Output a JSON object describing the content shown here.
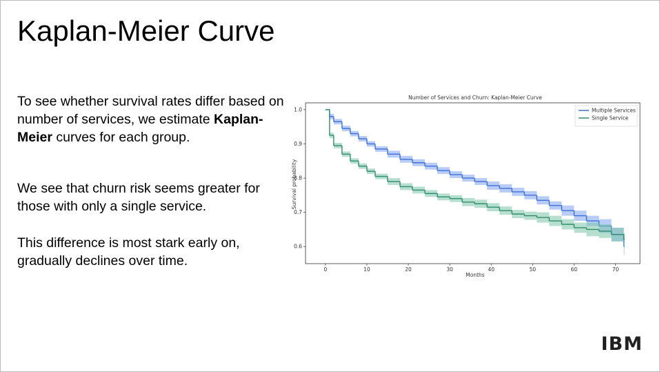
{
  "slide": {
    "title": "Kaplan-Meier Curve",
    "paragraphs": [
      [
        "To see whether survival rates differ based on number of services, we estimate ",
        "Kaplan-Meier",
        " curves for each group."
      ],
      [
        "We see that churn risk seems greater for those with only a single service."
      ],
      [
        "This difference is most stark early on, gradually declines over time."
      ]
    ],
    "logo": "IBM"
  },
  "chart_data": {
    "type": "step",
    "title": "Number of Services and Churn: Kaplan-Meier Curve",
    "x_label": "Months",
    "y_label": "Survival probability",
    "x": [
      0,
      1,
      2,
      4,
      6,
      8,
      10,
      12,
      15,
      18,
      21,
      24,
      27,
      30,
      33,
      36,
      39,
      42,
      45,
      48,
      51,
      54,
      57,
      60,
      63,
      66,
      69,
      72
    ],
    "series": [
      {
        "name": "Multiple Services",
        "color": "#3b6fd9",
        "band_color": "#7fa3ee",
        "values": [
          1.0,
          0.98,
          0.965,
          0.945,
          0.93,
          0.915,
          0.9,
          0.885,
          0.87,
          0.855,
          0.845,
          0.835,
          0.822,
          0.81,
          0.8,
          0.79,
          0.778,
          0.77,
          0.76,
          0.75,
          0.735,
          0.72,
          0.705,
          0.69,
          0.675,
          0.66,
          0.635,
          0.6
        ],
        "lower": [
          1.0,
          0.972,
          0.957,
          0.937,
          0.922,
          0.907,
          0.892,
          0.877,
          0.86,
          0.845,
          0.835,
          0.825,
          0.812,
          0.8,
          0.79,
          0.78,
          0.766,
          0.758,
          0.748,
          0.738,
          0.723,
          0.708,
          0.69,
          0.675,
          0.66,
          0.64,
          0.615,
          0.575
        ],
        "upper": [
          1.0,
          0.988,
          0.973,
          0.953,
          0.938,
          0.923,
          0.908,
          0.893,
          0.88,
          0.865,
          0.855,
          0.845,
          0.832,
          0.82,
          0.81,
          0.8,
          0.79,
          0.782,
          0.772,
          0.762,
          0.747,
          0.732,
          0.72,
          0.705,
          0.69,
          0.68,
          0.655,
          0.625
        ]
      },
      {
        "name": "Single Service",
        "color": "#2e8b6e",
        "band_color": "#7cc4aa",
        "values": [
          1.0,
          0.925,
          0.895,
          0.87,
          0.85,
          0.835,
          0.82,
          0.805,
          0.79,
          0.775,
          0.765,
          0.755,
          0.745,
          0.74,
          0.73,
          0.725,
          0.715,
          0.705,
          0.695,
          0.69,
          0.685,
          0.675,
          0.665,
          0.655,
          0.65,
          0.645,
          0.635,
          0.62
        ],
        "lower": [
          1.0,
          0.917,
          0.887,
          0.862,
          0.842,
          0.827,
          0.812,
          0.797,
          0.78,
          0.765,
          0.755,
          0.745,
          0.735,
          0.73,
          0.718,
          0.713,
          0.703,
          0.693,
          0.683,
          0.678,
          0.67,
          0.66,
          0.65,
          0.64,
          0.63,
          0.625,
          0.615,
          0.6
        ],
        "upper": [
          1.0,
          0.933,
          0.903,
          0.878,
          0.858,
          0.843,
          0.828,
          0.813,
          0.8,
          0.785,
          0.775,
          0.765,
          0.755,
          0.75,
          0.742,
          0.737,
          0.727,
          0.717,
          0.707,
          0.702,
          0.7,
          0.69,
          0.68,
          0.67,
          0.67,
          0.665,
          0.655,
          0.64
        ]
      }
    ],
    "xlim": [
      -4.8,
      75.9
    ],
    "ylim": [
      0.55,
      1.02
    ],
    "xticks": [
      0,
      10,
      20,
      30,
      40,
      50,
      60,
      70
    ],
    "yticks": [
      0.6,
      0.7,
      0.8,
      0.9,
      {
        "value": 1,
        "label": "1.0"
      }
    ],
    "legend": "upper right",
    "grid": false
  }
}
